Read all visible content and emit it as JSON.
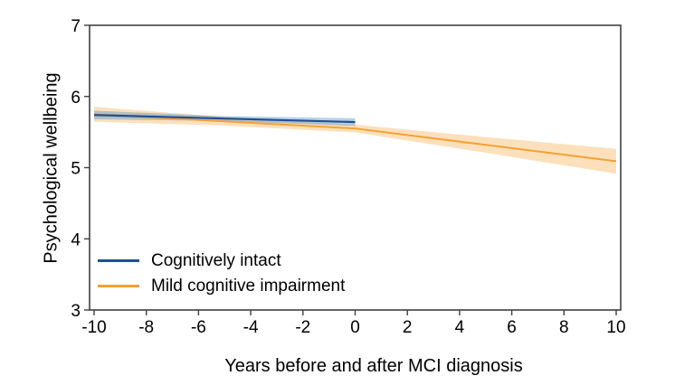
{
  "chart_data": {
    "type": "line",
    "title": "",
    "xlabel": "Years before and after MCI diagnosis",
    "ylabel": "Psychological wellbeing",
    "xlim": [
      -10,
      10
    ],
    "ylim": [
      3,
      7
    ],
    "x_ticks": [
      "-10",
      "-8",
      "-6",
      "-4",
      "-2",
      "0",
      "2",
      "4",
      "6",
      "8",
      "10"
    ],
    "x_tick_values": [
      -10,
      -8,
      -6,
      -4,
      -2,
      0,
      2,
      4,
      6,
      8,
      10
    ],
    "y_ticks": [
      "3",
      "4",
      "5",
      "6",
      "7"
    ],
    "y_tick_values": [
      3,
      4,
      5,
      6,
      7
    ],
    "grid": false,
    "legend_position": "inside-bottom-left",
    "frame_color": "#404040",
    "text_color": "#000000",
    "series": [
      {
        "name": "Mild cognitive impairment",
        "key": "mild-cognitive-impairment",
        "color": "#f5a033",
        "band_color": "#f5a033",
        "band_opacity": 0.33,
        "line_width": 2,
        "x": [
          -10,
          -5,
          0,
          5,
          10
        ],
        "y": [
          5.75,
          5.65,
          5.55,
          5.32,
          5.09
        ],
        "ci_upper": [
          5.855,
          5.71,
          5.605,
          5.43,
          5.265
        ],
        "ci_lower": [
          5.645,
          5.59,
          5.495,
          5.21,
          4.915
        ]
      },
      {
        "name": "Cognitively intact",
        "key": "cognitively-intact",
        "color": "#1e5096",
        "band_color": "#4f8bc0",
        "band_opacity": 0.4,
        "line_width": 2.2,
        "x": [
          -10,
          -5,
          0
        ],
        "y": [
          5.74,
          5.69,
          5.64
        ],
        "ci_upper": [
          5.8,
          5.725,
          5.695
        ],
        "ci_lower": [
          5.68,
          5.655,
          5.585
        ]
      }
    ],
    "legend_order": [
      "cognitively-intact",
      "mild-cognitive-impairment"
    ]
  }
}
